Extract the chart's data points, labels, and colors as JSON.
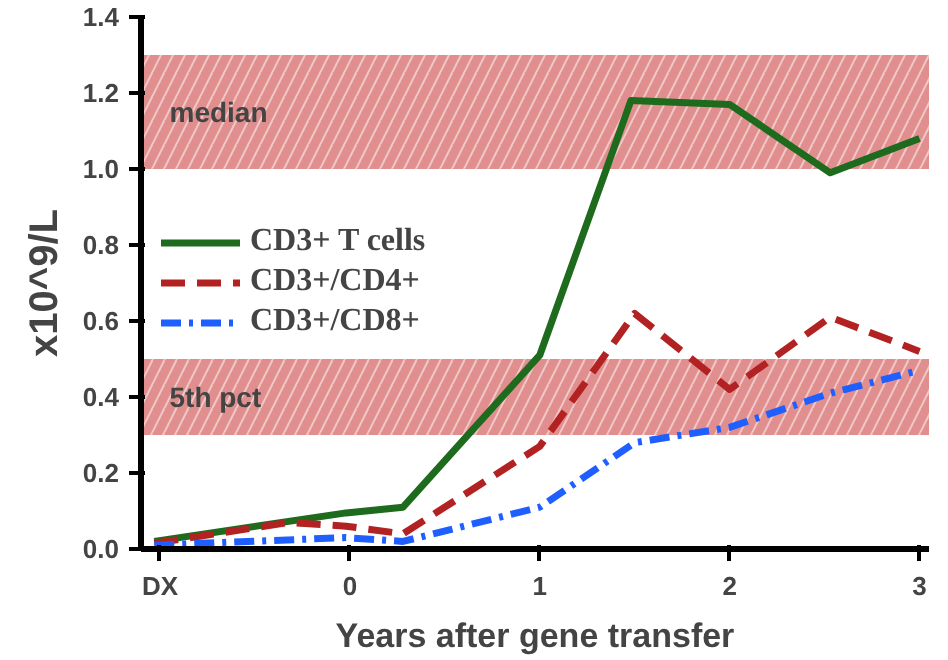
{
  "chart_data": {
    "type": "line",
    "xlabel": "Years after gene transfer",
    "ylabel": "x10^9/L",
    "xlim": [
      -1.1,
      3.05
    ],
    "ylim": [
      0,
      1.4
    ],
    "xticks": [
      {
        "value": -1,
        "label": "DX"
      },
      0,
      1,
      2,
      3
    ],
    "yticks": [
      {
        "value": 0,
        "label": "0.0"
      },
      {
        "value": 0.2,
        "label": "0.2"
      },
      {
        "value": 0.4,
        "label": "0.4"
      },
      {
        "value": 0.6,
        "label": "0.6"
      },
      {
        "value": 0.8,
        "label": "0.8"
      },
      {
        "value": 1.0,
        "label": "1.0"
      },
      {
        "value": 1.2,
        "label": "1.2"
      },
      {
        "value": 1.4,
        "label": "1.4"
      }
    ],
    "grid": false,
    "legend": "left",
    "marker": "none",
    "bands": [
      {
        "axis": "y",
        "from": 1.0,
        "to": 1.3,
        "label": "median",
        "color": "#c83232"
      },
      {
        "axis": "y",
        "from": 0.3,
        "to": 0.5,
        "label": "5th pct",
        "color": "#c83232"
      }
    ],
    "series": [
      {
        "name": "CD3+ T cells",
        "color": "#1e6b1e",
        "line_style": "solid",
        "x": [
          -1.03,
          -0.02,
          0.28,
          1.0,
          1.48,
          2.0,
          2.53,
          3.0
        ],
        "values": [
          0.02,
          0.095,
          0.11,
          0.51,
          1.18,
          1.17,
          0.99,
          1.08
        ]
      },
      {
        "name": "CD3+/CD4+",
        "color": "#b22222",
        "line_style": "dashed",
        "x": [
          -1.03,
          -0.32,
          -0.02,
          0.28,
          1.0,
          1.5,
          2.0,
          2.53,
          3.0
        ],
        "values": [
          0.015,
          0.07,
          0.06,
          0.04,
          0.27,
          0.62,
          0.42,
          0.61,
          0.52
        ]
      },
      {
        "name": "CD3+/CD8+",
        "color": "#1f5fff",
        "line_style": "dashdot",
        "x": [
          -1.03,
          -0.02,
          0.28,
          1.0,
          1.5,
          2.0,
          2.53,
          3.0
        ],
        "values": [
          0.01,
          0.03,
          0.02,
          0.11,
          0.28,
          0.32,
          0.41,
          0.47
        ]
      }
    ]
  }
}
